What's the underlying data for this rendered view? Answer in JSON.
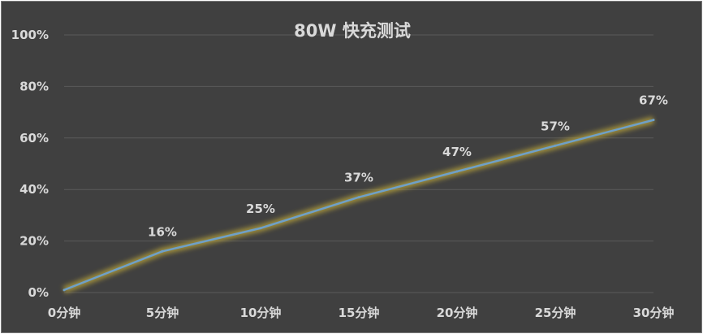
{
  "chart_data": {
    "type": "line",
    "title": "80W 快充测试",
    "categories": [
      "0分钟",
      "5分钟",
      "10分钟",
      "15分钟",
      "20分钟",
      "25分钟",
      "30分钟"
    ],
    "values": [
      1,
      16,
      25,
      37,
      47,
      57,
      67
    ],
    "data_labels": [
      "",
      "16%",
      "25%",
      "37%",
      "47%",
      "57%",
      "67%"
    ],
    "y_ticks": [
      "0%",
      "20%",
      "40%",
      "60%",
      "80%",
      "100%"
    ],
    "ylim": [
      0,
      100
    ],
    "grid": true,
    "xlabel": "",
    "ylabel": ""
  },
  "colors": {
    "background": "#404040",
    "line": "#6fa0c8",
    "glow": "#b8a33a",
    "grid": "#5a5a5a",
    "text": "#d9d9d9"
  }
}
